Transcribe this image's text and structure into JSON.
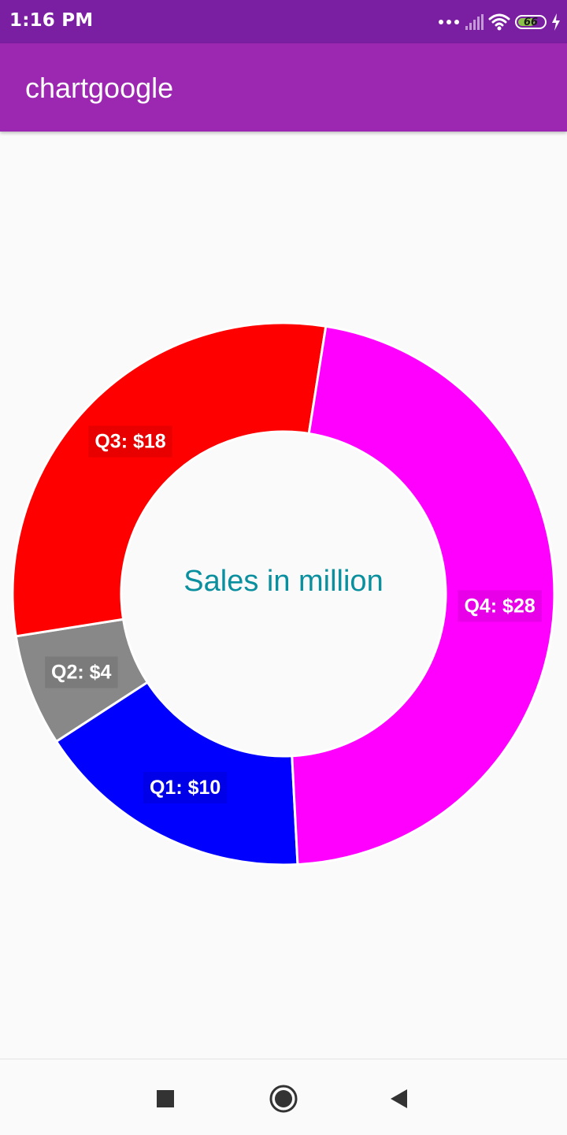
{
  "status_bar": {
    "time": "1:16 PM",
    "battery_level": "66",
    "icons": [
      "dots-icon",
      "signal-icon",
      "wifi-icon",
      "battery-icon",
      "charging-icon"
    ]
  },
  "app_bar": {
    "title": "chartgoogle"
  },
  "chart_data": {
    "type": "pie",
    "donut": true,
    "center_text": "Sales in million",
    "categories": [
      "Q1",
      "Q2",
      "Q3",
      "Q4"
    ],
    "values": [
      10,
      4,
      18,
      28
    ],
    "labels": [
      "Q1: $10",
      "Q2: $4",
      "Q3: $18",
      "Q4: $28"
    ],
    "colors": [
      "#0000ff",
      "#888888",
      "#ff0000",
      "#ff00ff"
    ],
    "center_text_color": "#0a8f9e"
  },
  "nav_bar": {
    "buttons": [
      "recents-square-icon",
      "home-circle-icon",
      "back-triangle-icon"
    ]
  }
}
